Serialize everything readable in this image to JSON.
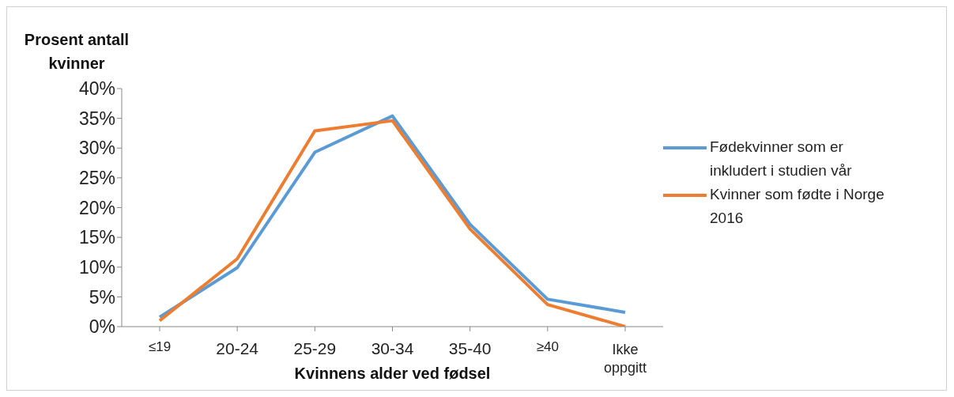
{
  "chart_data": {
    "type": "line",
    "xlabel": "Kvinnens alder ved fødsel",
    "ylabel": "Prosent antall kvinner",
    "categories": [
      "≤19",
      "20-24",
      "25-29",
      "30-34",
      "35-40",
      "≥40",
      "Ikke oppgitt"
    ],
    "series": [
      {
        "name": "Fødekvinner som er inkludert i studien vår",
        "color": "#5b9bd5",
        "values": [
          1.6,
          9.9,
          29.3,
          35.4,
          17.2,
          4.6,
          2.4
        ]
      },
      {
        "name": "Kvinner som fødte i Norge 2016",
        "color": "#ed7d31",
        "values": [
          1.0,
          11.4,
          32.9,
          34.6,
          16.4,
          3.7,
          0
        ]
      }
    ],
    "ylim": [
      0,
      40
    ],
    "yticks": [
      {
        "value": 0,
        "label": "0%"
      },
      {
        "value": 5,
        "label": "5%"
      },
      {
        "value": 10,
        "label": "10%"
      },
      {
        "value": 15,
        "label": "15%"
      },
      {
        "value": 20,
        "label": "20%"
      },
      {
        "value": 25,
        "label": "25%"
      },
      {
        "value": 30,
        "label": "30%"
      },
      {
        "value": 35,
        "label": "35%"
      },
      {
        "value": 40,
        "label": "40%"
      }
    ],
    "grid": false,
    "legend": "right",
    "marker": "none",
    "line_style": "solid"
  }
}
